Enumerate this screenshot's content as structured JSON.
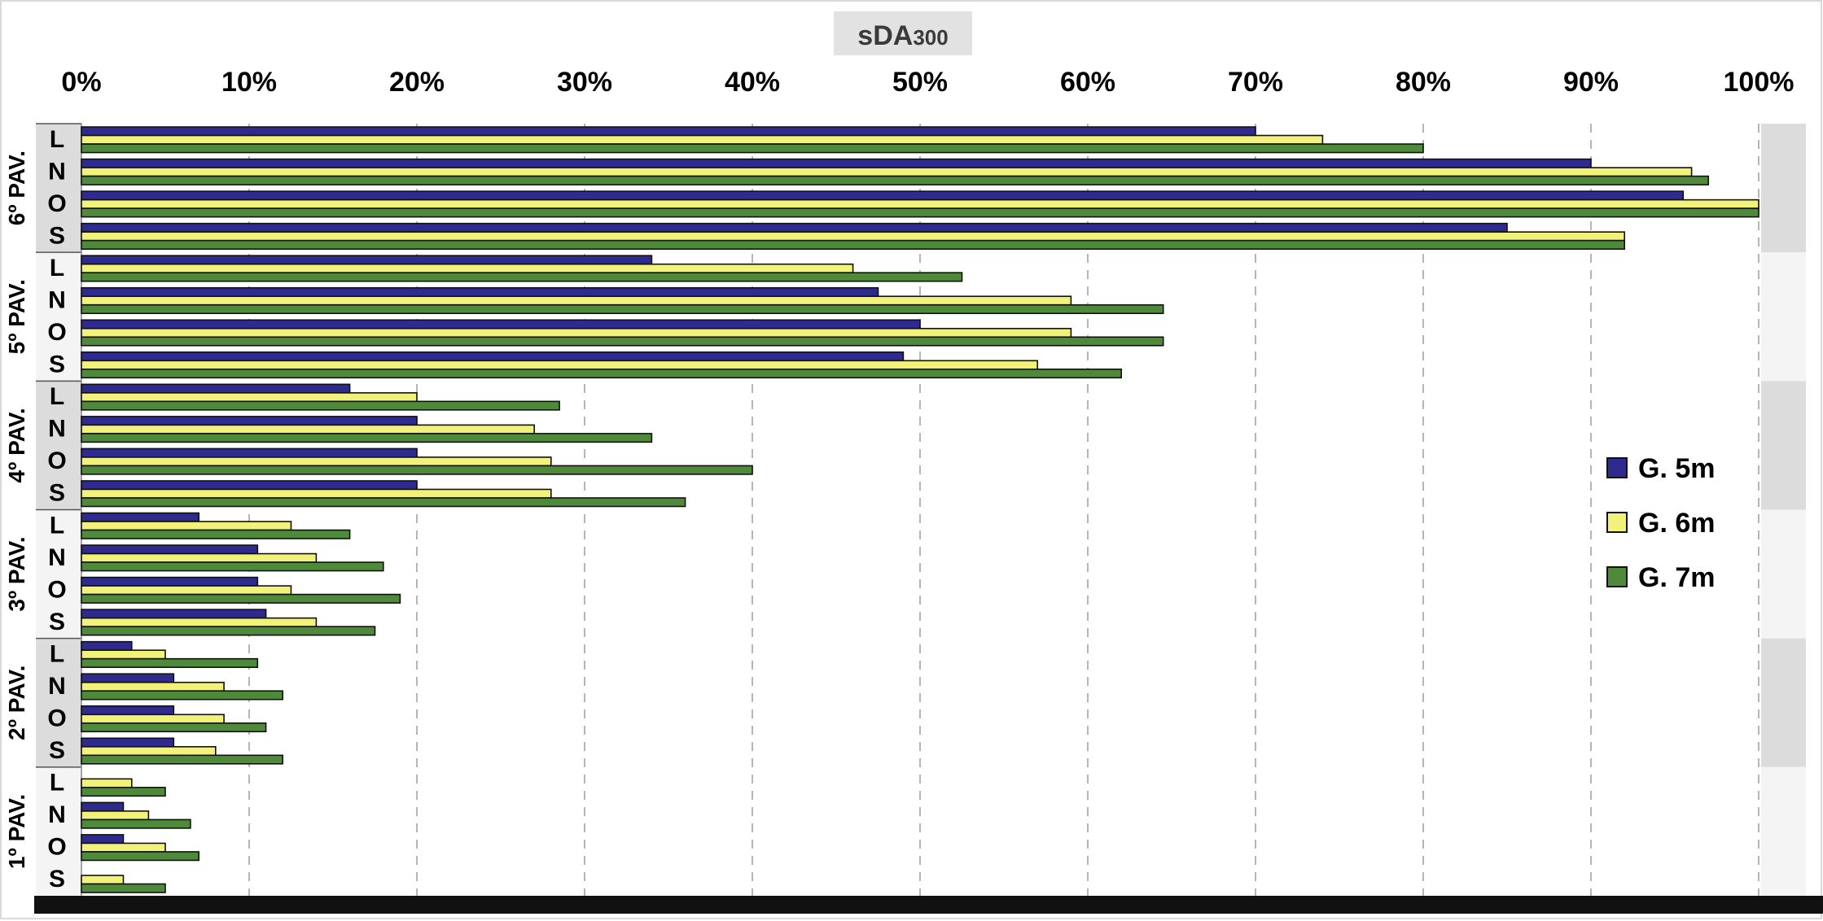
{
  "chart_data": {
    "type": "bar",
    "orientation": "horizontal",
    "title": "sDA",
    "title_subscript": "300",
    "x_ticks": [
      "0%",
      "10%",
      "20%",
      "30%",
      "40%",
      "50%",
      "60%",
      "70%",
      "80%",
      "90%",
      "100%"
    ],
    "xlim": [
      0,
      100
    ],
    "grid": "vertical dashed",
    "legend_position": "right",
    "colors": {
      "G. 5m": "#2e2a8f",
      "G. 6m": "#f2f27a",
      "G. 7m": "#4f8a3a"
    },
    "groups": [
      {
        "label": "6º PAV.",
        "categories": [
          "L",
          "N",
          "O",
          "S"
        ]
      },
      {
        "label": "5º PAV.",
        "categories": [
          "L",
          "N",
          "O",
          "S"
        ]
      },
      {
        "label": "4º PAV.",
        "categories": [
          "L",
          "N",
          "O",
          "S"
        ]
      },
      {
        "label": "3º PAV.",
        "categories": [
          "L",
          "N",
          "O",
          "S"
        ]
      },
      {
        "label": "2º PAV.",
        "categories": [
          "L",
          "N",
          "O",
          "S"
        ]
      },
      {
        "label": "1º PAV.",
        "categories": [
          "L",
          "N",
          "O",
          "S"
        ]
      }
    ],
    "series": [
      {
        "name": "G. 5m",
        "values": [
          70,
          90,
          95.5,
          85,
          34,
          47.5,
          50,
          49,
          16,
          20,
          20,
          20,
          7,
          10.5,
          10.5,
          11,
          3,
          5.5,
          5.5,
          5.5,
          0,
          2.5,
          2.5,
          0
        ]
      },
      {
        "name": "G. 6m",
        "values": [
          74,
          96,
          100,
          92,
          46,
          59,
          59,
          57,
          20,
          27,
          28,
          28,
          12.5,
          14,
          12.5,
          14,
          5,
          8.5,
          8.5,
          8,
          3,
          4,
          5,
          2.5
        ]
      },
      {
        "name": "G. 7m",
        "values": [
          80,
          97,
          100,
          92,
          52.5,
          64.5,
          64.5,
          62,
          28.5,
          34,
          40,
          36,
          16,
          18,
          19,
          17.5,
          10.5,
          12,
          11,
          12,
          5,
          6.5,
          7,
          5
        ]
      }
    ]
  }
}
